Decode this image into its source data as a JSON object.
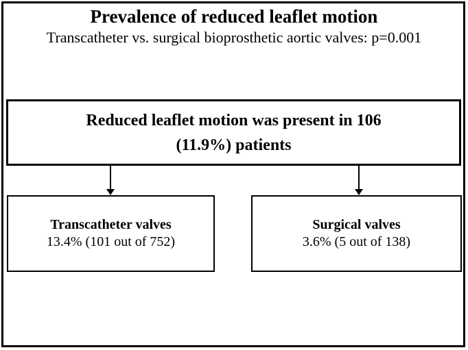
{
  "diagram": {
    "title": "Prevalence of reduced leaflet motion",
    "subtitle": "Transcatheter vs. surgical bioprosthetic aortic valves: p=0.001",
    "p_value": "0.001",
    "summary_box": {
      "line1": "Reduced leaflet motion was present in 106",
      "line2": "(11.9%) patients",
      "count": 106,
      "percent": "11.9%"
    },
    "branches": [
      {
        "label": "Transcatheter valves",
        "value": "13.4% (101 out of 752)",
        "percent": "13.4%",
        "count": 101,
        "total": 752
      },
      {
        "label": "Surgical valves",
        "value": "3.6% (5 out of 138)",
        "percent": "3.6%",
        "count": 5,
        "total": 138
      }
    ],
    "colors": {
      "border": "#000000",
      "text": "#000000",
      "background": "#ffffff"
    }
  }
}
